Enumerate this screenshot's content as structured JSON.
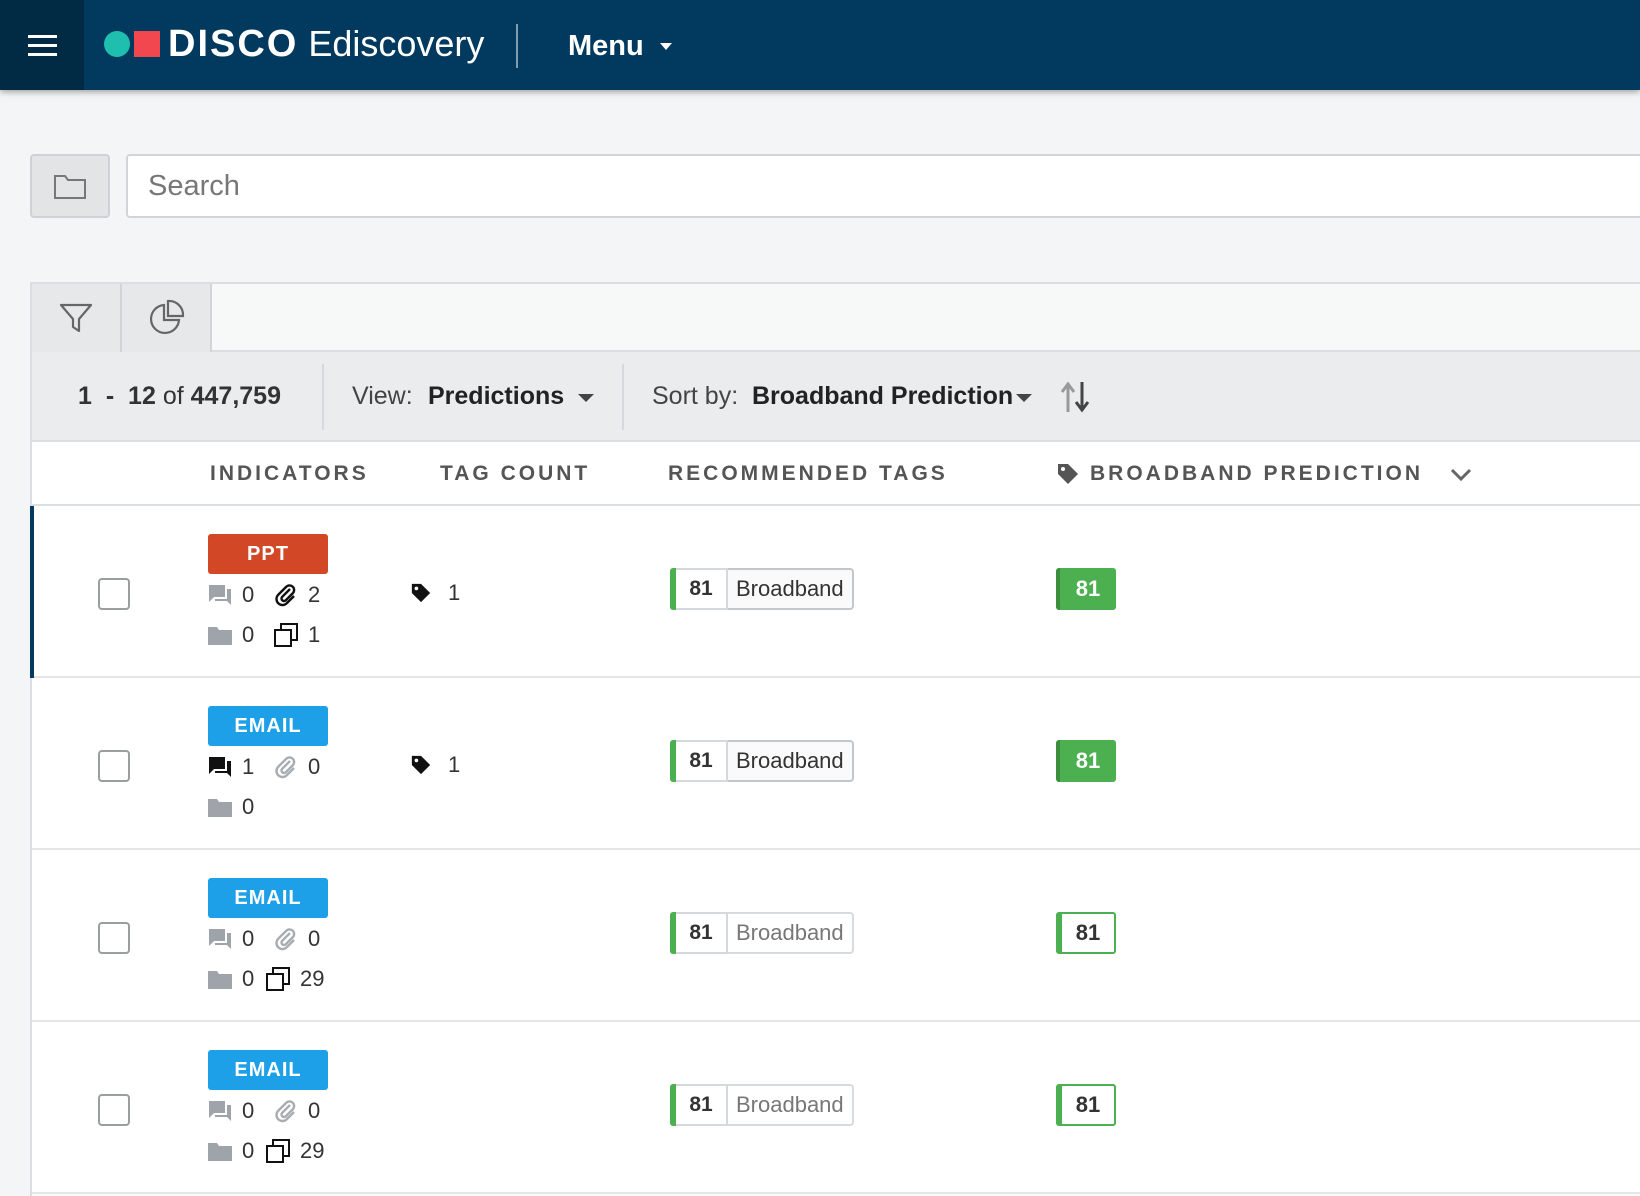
{
  "header": {
    "brand_name": "DISCO",
    "product_name": "Ediscovery",
    "menu_label": "Menu"
  },
  "search": {
    "placeholder": "Search"
  },
  "results": {
    "range_start": "1",
    "range_sep": "-",
    "range_end": "12",
    "of_word": "of",
    "total": "447,759",
    "view_label": "View:",
    "view_value": "Predictions",
    "sort_label": "Sort by:",
    "sort_value": "Broadband Prediction"
  },
  "columns": {
    "indicators": "INDICATORS",
    "tag_count": "TAG COUNT",
    "recommended_tags": "RECOMMENDED TAGS",
    "broadband_prediction": "BROADBAND PREDICTION"
  },
  "colors": {
    "nav_bg": "#013a5e",
    "ppt_badge": "#d24726",
    "email_badge": "#1ea0e8",
    "prediction_green": "#4caf50"
  },
  "rows": [
    {
      "type": "PPT",
      "comments": "0",
      "attachments": "2",
      "folders": "0",
      "copies": "1",
      "tag_count": "1",
      "rec_score": "81",
      "rec_tag": "Broadband",
      "prediction": "81"
    },
    {
      "type": "EMAIL",
      "comments": "1",
      "attachments": "0",
      "folders": "0",
      "tag_count": "1",
      "rec_score": "81",
      "rec_tag": "Broadband",
      "prediction": "81"
    },
    {
      "type": "EMAIL",
      "comments": "0",
      "attachments": "0",
      "folders": "0",
      "copies": "29",
      "rec_score": "81",
      "rec_tag": "Broadband",
      "prediction": "81"
    },
    {
      "type": "EMAIL",
      "comments": "0",
      "attachments": "0",
      "folders": "0",
      "copies": "29",
      "rec_score": "81",
      "rec_tag": "Broadband",
      "prediction": "81"
    }
  ]
}
